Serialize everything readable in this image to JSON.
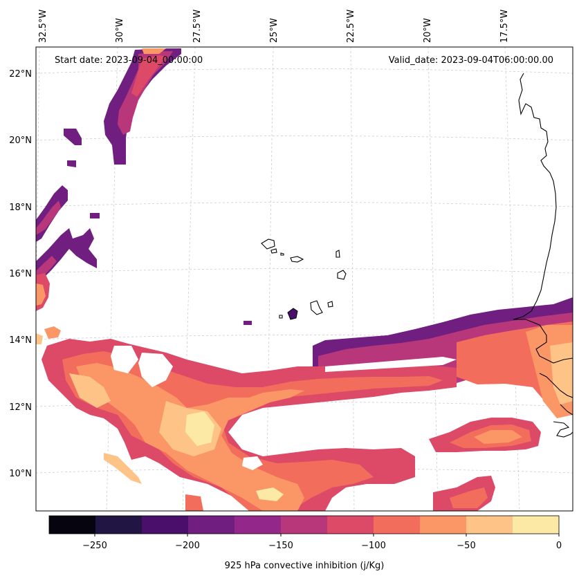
{
  "annotations": {
    "start": "Start date: 2023-09-04_00:00:00",
    "valid": "Valid_date: 2023-09-04T06:00:00.00"
  },
  "axes": {
    "lon_ticks": [
      "32.5°W",
      "30°W",
      "27.5°W",
      "25°W",
      "22.5°W",
      "20°W",
      "17.5°W"
    ],
    "lat_ticks": [
      "22°N",
      "20°N",
      "18°N",
      "16°N",
      "14°N",
      "12°N",
      "10°N"
    ]
  },
  "colorbar": {
    "label": "925 hPa convective inhibition (j/Kg)",
    "tick_labels": [
      "−250",
      "−200",
      "−150",
      "−100",
      "−50",
      "0"
    ],
    "colors": [
      "#05040f",
      "#211544",
      "#4a0f6b",
      "#701f81",
      "#93288a",
      "#b8377a",
      "#dc4a68",
      "#f26d5b",
      "#fb9766",
      "#fec487",
      "#fde9a6"
    ]
  },
  "map": {
    "field_colors": {
      "ramp": [
        "#4a0f6b",
        "#701f81",
        "#93288a",
        "#b8377a",
        "#dc4a68",
        "#f26d5b",
        "#fb9766",
        "#fec487",
        "#fde9a6"
      ]
    }
  }
}
